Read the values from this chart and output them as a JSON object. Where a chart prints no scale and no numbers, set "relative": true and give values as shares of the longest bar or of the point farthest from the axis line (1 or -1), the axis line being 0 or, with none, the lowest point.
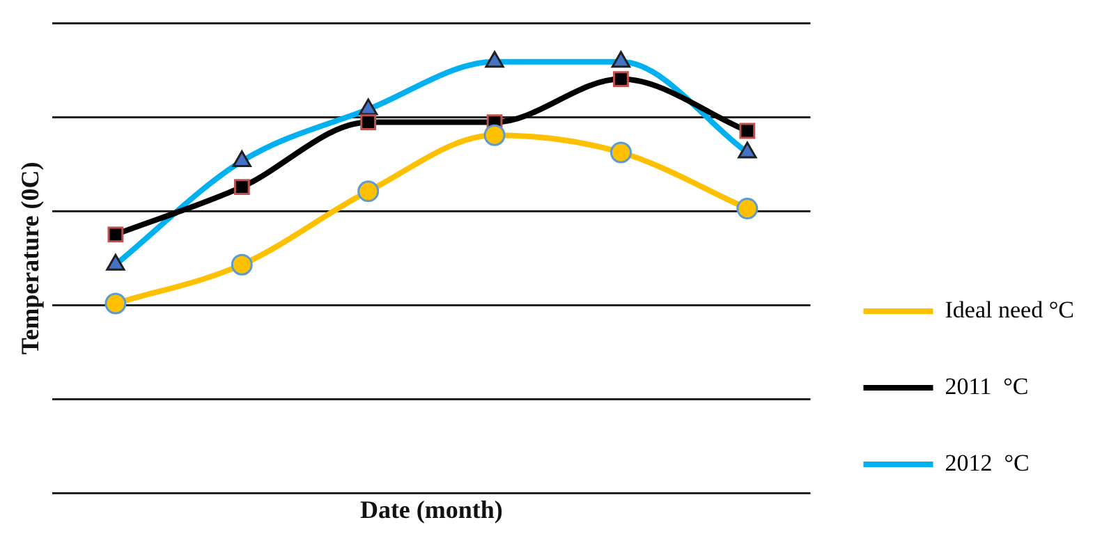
{
  "chart_data": {
    "type": "line",
    "xlabel": "Date (month)",
    "ylabel": "Temperature (0C)",
    "relative": true,
    "categories": [
      null,
      null,
      null,
      null,
      null,
      null
    ],
    "grid": "y",
    "legend": "bottom right",
    "line_style": "solid",
    "series": [
      {
        "name": "Ideal need °C",
        "color": "#ffc000",
        "marker": "circle",
        "values": [
          0.44,
          0.53,
          0.7,
          0.83,
          0.79,
          0.66
        ]
      },
      {
        "name": "2011  °C",
        "color": "#000000",
        "marker": "square",
        "values": [
          0.6,
          0.71,
          0.86,
          0.86,
          0.96,
          0.84
        ]
      },
      {
        "name": "2012  °C",
        "color": "#00b0f0",
        "marker": "triangle",
        "values": [
          0.53,
          0.77,
          0.89,
          1,
          1,
          0.79
        ]
      }
    ]
  }
}
